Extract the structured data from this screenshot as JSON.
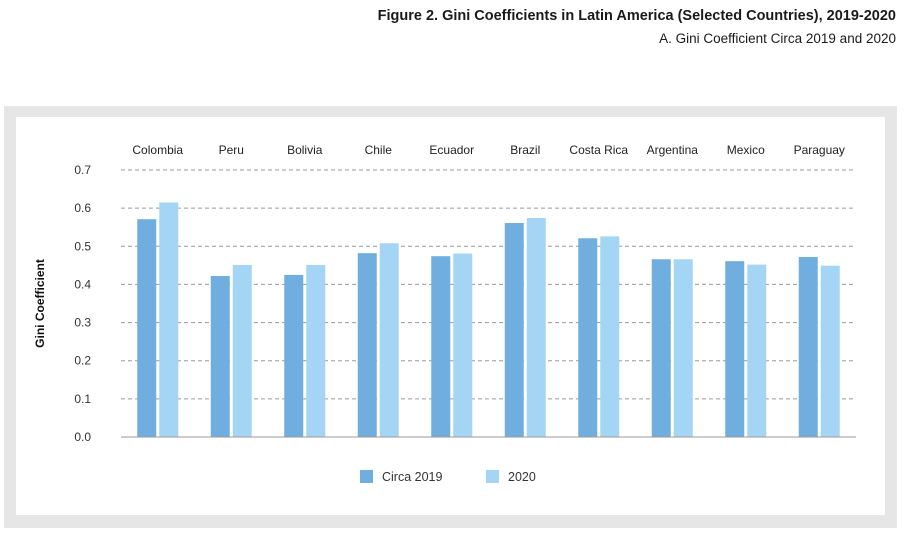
{
  "figure": {
    "title": "Figure 2. Gini Coefficients in Latin America (Selected Countries), 2019-2020",
    "subtitle": "A. Gini Coefficient Circa 2019 and 2020"
  },
  "chart_data": {
    "type": "bar",
    "categories": [
      "Colombia",
      "Peru",
      "Bolivia",
      "Chile",
      "Ecuador",
      "Brazil",
      "Costa Rica",
      "Argentina",
      "Mexico",
      "Paraguay"
    ],
    "series": [
      {
        "name": "Circa 2019",
        "color": "#6faedf",
        "values": [
          0.571,
          0.422,
          0.425,
          0.482,
          0.474,
          0.561,
          0.521,
          0.466,
          0.461,
          0.472
        ]
      },
      {
        "name": "2020",
        "color": "#a5d5f5",
        "values": [
          0.615,
          0.451,
          0.451,
          0.508,
          0.481,
          0.574,
          0.526,
          0.466,
          0.452,
          0.449
        ]
      }
    ],
    "ylabel": "Gini Coefficient",
    "xlabel": "",
    "ylim": [
      0,
      0.7
    ],
    "yticks": [
      "0.0",
      "0.1",
      "0.2",
      "0.3",
      "0.4",
      "0.5",
      "0.6",
      "0.7"
    ],
    "grid": true,
    "gridstyle": "dashed",
    "category_labels_position": "top",
    "legend_position": "bottom-center"
  }
}
